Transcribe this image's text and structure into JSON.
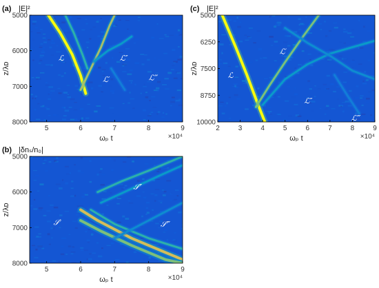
{
  "chart_data": [
    {
      "type": "heatmap",
      "panel_label": "(a)",
      "title": "|E|²",
      "xlabel": "ωₚ t",
      "ylabel": "z/λᴅ",
      "x_multiplier": "×10⁴",
      "xlim": [
        4.5,
        9
      ],
      "ylim": [
        8000,
        5000
      ],
      "x_ticks": [
        5,
        6,
        7,
        8,
        9
      ],
      "y_ticks": [
        5000,
        6000,
        7000,
        8000
      ],
      "colormap": "parula",
      "ridges": [
        {
          "points": [
            [
              5.05,
              5000
            ],
            [
              5.4,
              5500
            ],
            [
              5.75,
              6100
            ],
            [
              6.0,
              6700
            ],
            [
              6.15,
              7200
            ]
          ],
          "intensity": 1.0,
          "width": 4
        },
        {
          "points": [
            [
              5.55,
              5000
            ],
            [
              5.8,
              5500
            ],
            [
              6.05,
              6100
            ],
            [
              6.2,
              6500
            ]
          ],
          "intensity": 0.7,
          "width": 3
        },
        {
          "points": [
            [
              6.0,
              7100
            ],
            [
              6.3,
              6500
            ],
            [
              6.6,
              5900
            ],
            [
              6.85,
              5300
            ],
            [
              7.0,
              5000
            ]
          ],
          "intensity": 0.85,
          "width": 3
        },
        {
          "points": [
            [
              6.4,
              6300
            ],
            [
              6.8,
              6000
            ],
            [
              7.2,
              5800
            ],
            [
              7.5,
              5600
            ]
          ],
          "intensity": 0.6,
          "width": 3
        },
        {
          "points": [
            [
              6.9,
              6500
            ],
            [
              7.1,
              6800
            ],
            [
              7.3,
              7100
            ]
          ],
          "intensity": 0.5,
          "width": 3
        }
      ],
      "annotations": [
        {
          "text": "ℒ",
          "x": 5.35,
          "y": 6200
        },
        {
          "text": "ℒ′",
          "x": 6.65,
          "y": 6800
        },
        {
          "text": "ℒ″",
          "x": 7.15,
          "y": 6200
        },
        {
          "text": "ℒ‴",
          "x": 8.0,
          "y": 6750
        }
      ]
    },
    {
      "type": "heatmap",
      "panel_label": "(b)",
      "title": "|δnₛ/n₀|",
      "xlabel": "ωₚ t",
      "ylabel": "z/λᴅ",
      "x_multiplier": "×10⁴",
      "xlim": [
        4.5,
        9
      ],
      "ylim": [
        8000,
        5000
      ],
      "x_ticks": [
        5,
        6,
        7,
        8,
        9
      ],
      "y_ticks": [
        5000,
        6000,
        7000,
        8000
      ],
      "colormap": "parula",
      "ridges": [
        {
          "points": [
            [
              6.0,
              6500
            ],
            [
              6.5,
              6800
            ],
            [
              7.5,
              7300
            ],
            [
              8.5,
              7700
            ],
            [
              9.0,
              7900
            ]
          ],
          "intensity": 0.9,
          "width": 4
        },
        {
          "points": [
            [
              6.0,
              6800
            ],
            [
              6.6,
              7100
            ],
            [
              7.5,
              7500
            ],
            [
              8.5,
              7900
            ],
            [
              9.0,
              8000
            ]
          ],
          "intensity": 0.8,
          "width": 4
        },
        {
          "points": [
            [
              6.3,
              6500
            ],
            [
              7.0,
              6900
            ],
            [
              8.0,
              7300
            ],
            [
              9.0,
              7600
            ]
          ],
          "intensity": 0.7,
          "width": 3
        },
        {
          "points": [
            [
              6.5,
              6000
            ],
            [
              7.2,
              5700
            ],
            [
              8.0,
              5400
            ],
            [
              9.0,
              5000
            ]
          ],
          "intensity": 0.7,
          "width": 3
        },
        {
          "points": [
            [
              6.6,
              6300
            ],
            [
              7.4,
              5950
            ],
            [
              8.3,
              5550
            ],
            [
              9.0,
              5250
            ]
          ],
          "intensity": 0.6,
          "width": 3
        },
        {
          "points": [
            [
              7.0,
              7300
            ],
            [
              7.8,
              6900
            ],
            [
              8.6,
              6500
            ],
            [
              9.0,
              6300
            ]
          ],
          "intensity": 0.55,
          "width": 3
        }
      ],
      "annotations": [
        {
          "text": "𝒮′",
          "x": 5.2,
          "y": 6850
        },
        {
          "text": "𝒮″",
          "x": 7.55,
          "y": 5850
        },
        {
          "text": "𝒮‴",
          "x": 8.35,
          "y": 6900
        }
      ]
    },
    {
      "type": "heatmap",
      "panel_label": "(c)",
      "title": "|E|²",
      "xlabel": "ωₚ t",
      "ylabel": "z/λᴅ",
      "x_multiplier": "×10⁴",
      "xlim": [
        2,
        9
      ],
      "ylim": [
        10000,
        5000
      ],
      "x_ticks": [
        2,
        3,
        4,
        5,
        6,
        7,
        8,
        9
      ],
      "y_ticks": [
        5000,
        6250,
        7500,
        8750,
        10000
      ],
      "colormap": "parula",
      "ridges": [
        {
          "points": [
            [
              2.2,
              5000
            ],
            [
              2.8,
              6500
            ],
            [
              3.3,
              7800
            ],
            [
              3.8,
              9200
            ],
            [
              4.1,
              10000
            ]
          ],
          "intensity": 1.0,
          "width": 4
        },
        {
          "points": [
            [
              3.7,
              9300
            ],
            [
              4.3,
              8300
            ],
            [
              5.0,
              7200
            ],
            [
              5.8,
              6000
            ],
            [
              6.5,
              5000
            ]
          ],
          "intensity": 0.8,
          "width": 3
        },
        {
          "points": [
            [
              4.0,
              9200
            ],
            [
              5.0,
              8000
            ],
            [
              6.0,
              7300
            ],
            [
              7.0,
              6800
            ],
            [
              8.0,
              6500
            ],
            [
              9.0,
              6200
            ]
          ],
          "intensity": 0.6,
          "width": 3
        },
        {
          "points": [
            [
              5.0,
              5600
            ],
            [
              6.0,
              6300
            ],
            [
              7.0,
              6900
            ],
            [
              8.0,
              7600
            ],
            [
              9.0,
              8000
            ]
          ],
          "intensity": 0.55,
          "width": 3
        },
        {
          "points": [
            [
              7.2,
              7800
            ],
            [
              7.8,
              8800
            ],
            [
              8.3,
              9600
            ]
          ],
          "intensity": 0.5,
          "width": 3
        }
      ],
      "annotations": [
        {
          "text": "ℒ",
          "x": 2.45,
          "y": 7800
        },
        {
          "text": "ℒ′",
          "x": 4.75,
          "y": 6700
        },
        {
          "text": "ℒ″",
          "x": 5.85,
          "y": 9000
        },
        {
          "text": "ℒ‴",
          "x": 7.95,
          "y": 9800
        }
      ]
    }
  ]
}
